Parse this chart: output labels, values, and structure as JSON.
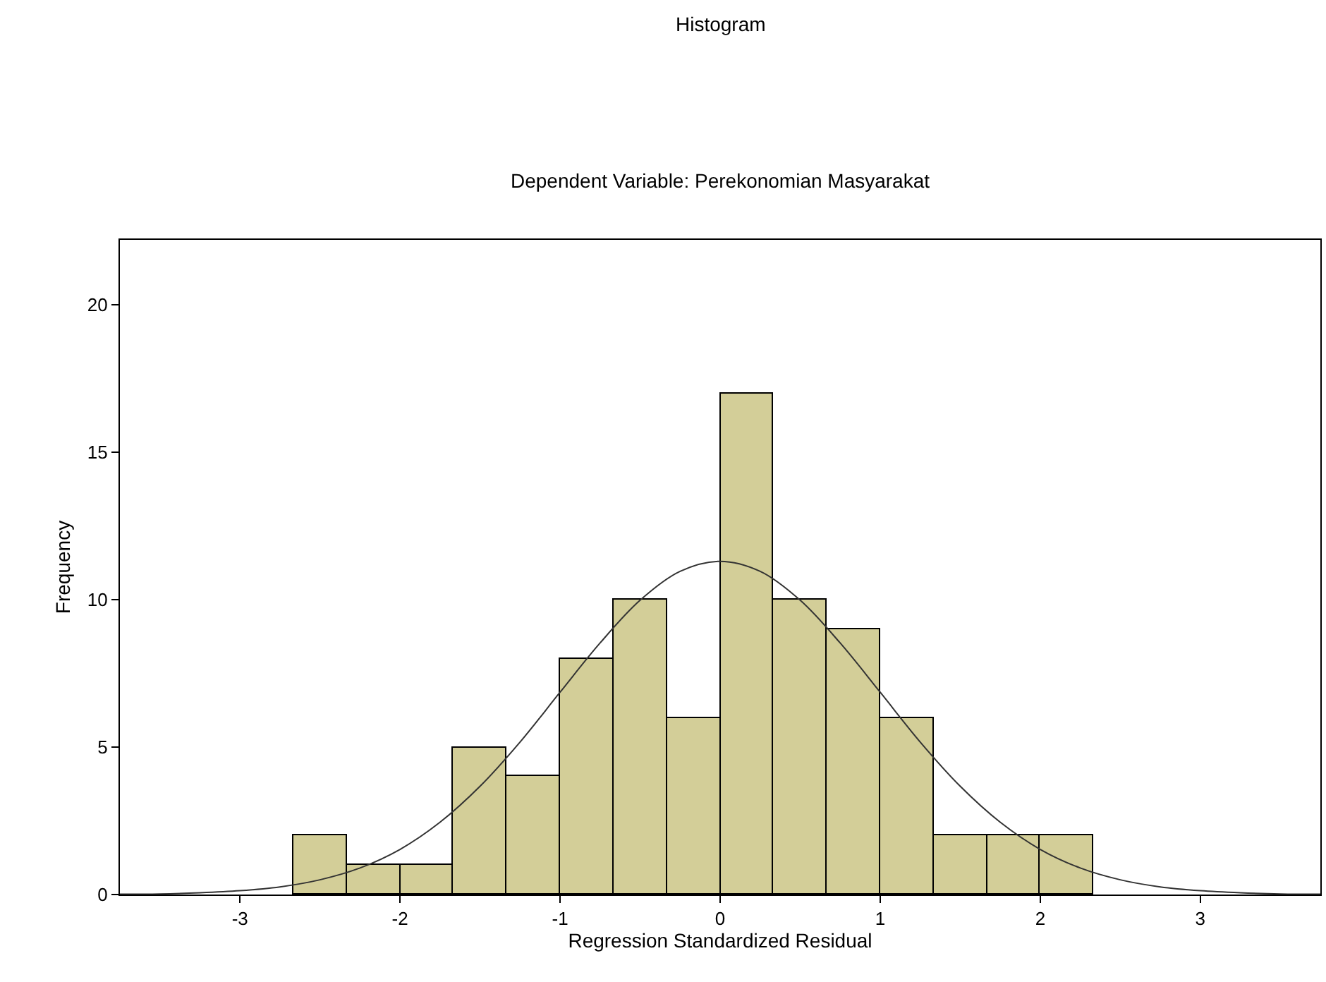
{
  "chart_data": {
    "type": "histogram",
    "title": "Histogram",
    "subtitle": "Dependent Variable: Perekonomian Masyarakat",
    "xlabel": "Regression Standardized Residual",
    "ylabel": "Frequency",
    "bins": [
      -2.667,
      -2.333,
      -2.0,
      -1.667,
      -1.333,
      -1.0,
      -0.667,
      -0.333,
      0.0,
      0.333,
      0.667,
      1.0,
      1.333,
      1.667,
      2.0,
      2.333
    ],
    "values": [
      2,
      1,
      1,
      5,
      4,
      8,
      10,
      6,
      17,
      10,
      9,
      6,
      2,
      2,
      2
    ],
    "color": "#d3ce98",
    "series": [
      {
        "type": "line",
        "color": "#333333",
        "x": [
          -3.75,
          -3.5,
          -3.25,
          -3.0,
          -2.75,
          -2.5,
          -2.25,
          -2.0,
          -1.75,
          -1.5,
          -1.25,
          -1.0,
          -0.75,
          -0.5,
          -0.25,
          0.0,
          0.25,
          0.5,
          0.75,
          1.0,
          1.25,
          1.5,
          1.75,
          2.0,
          2.25,
          2.5,
          2.75,
          3.0,
          3.25,
          3.5,
          3.75
        ],
        "values": [
          0.01,
          0.02,
          0.06,
          0.13,
          0.26,
          0.5,
          0.9,
          1.53,
          2.45,
          3.67,
          5.17,
          6.86,
          8.53,
          9.98,
          10.96,
          11.3,
          10.96,
          9.98,
          8.53,
          6.86,
          5.17,
          3.67,
          2.45,
          1.53,
          0.9,
          0.5,
          0.26,
          0.13,
          0.06,
          0.02,
          0.01
        ]
      }
    ],
    "xlim": [
      -3.75,
      3.75
    ],
    "ylim": [
      0,
      22.2
    ],
    "xticks": [
      -3,
      -2,
      -1,
      0,
      1,
      2,
      3
    ],
    "yticks": [
      0,
      5,
      10,
      15,
      20
    ]
  }
}
